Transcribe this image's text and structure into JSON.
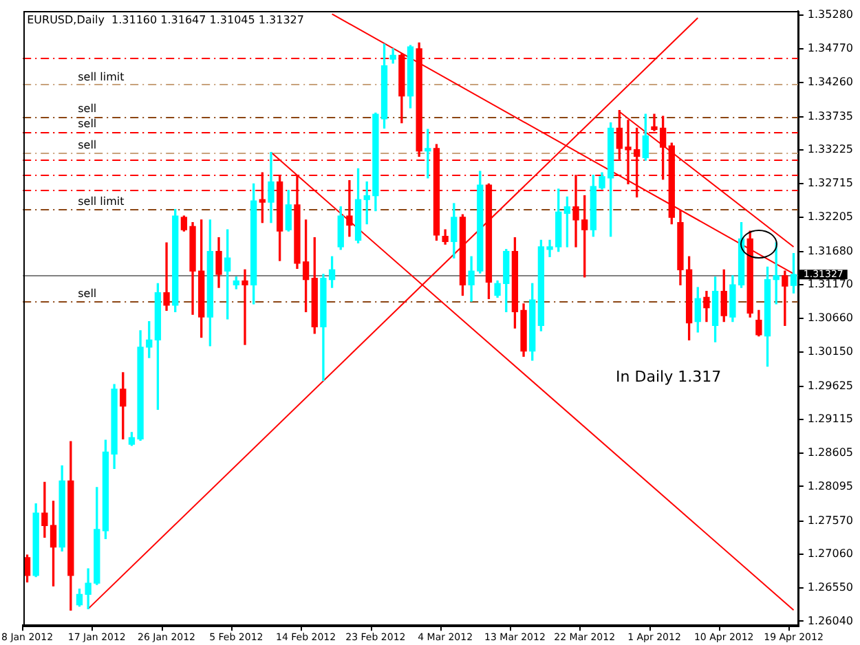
{
  "chart_data": {
    "type": "candlestick",
    "title": "EURUSD,Daily  1.31160 1.31647 1.31045 1.31327",
    "categories": [
      "8 Jan 2012",
      null,
      null,
      null,
      null,
      null,
      null,
      null,
      "17 Jan 2012",
      null,
      null,
      null,
      null,
      null,
      null,
      null,
      "26 Jan 2012",
      null,
      null,
      null,
      null,
      null,
      null,
      null,
      "5 Feb 2012",
      null,
      null,
      null,
      null,
      null,
      null,
      null,
      "14 Feb 2012",
      null,
      null,
      null,
      null,
      null,
      null,
      null,
      "23 Feb 2012",
      null,
      null,
      null,
      null,
      null,
      null,
      null,
      "4 Mar 2012",
      null,
      null,
      null,
      null,
      null,
      null,
      null,
      "13 Mar 2012",
      null,
      null,
      null,
      null,
      null,
      null,
      null,
      "22 Mar 2012",
      null,
      null,
      null,
      null,
      null,
      null,
      null,
      "1 Apr 2012",
      null,
      null,
      null,
      null,
      null,
      null,
      null,
      "10 Apr 2012",
      null,
      null,
      null,
      null,
      null,
      null,
      null,
      "19 Apr 2012"
    ],
    "ohlc": [
      [
        1.2701,
        1.2705,
        1.2664,
        1.2674
      ],
      [
        1.2674,
        1.2783,
        1.2672,
        1.2769
      ],
      [
        1.2769,
        1.2816,
        1.2732,
        1.275
      ],
      [
        1.275,
        1.2787,
        1.2658,
        1.2717
      ],
      [
        1.2717,
        1.2841,
        1.2711,
        1.2818
      ],
      [
        1.2818,
        1.2878,
        1.2621,
        1.2674
      ],
      [
        1.2629,
        1.2653,
        1.2627,
        1.2645
      ],
      [
        1.2645,
        1.2684,
        1.2623,
        1.2662
      ],
      [
        1.2662,
        1.2808,
        1.266,
        1.2744
      ],
      [
        1.2742,
        1.288,
        1.273,
        1.2862
      ],
      [
        1.2859,
        1.2965,
        1.2837,
        1.2958
      ],
      [
        1.2958,
        1.2983,
        1.2882,
        1.2932
      ],
      [
        1.2874,
        1.2892,
        1.2872,
        1.2884
      ],
      [
        1.2882,
        1.3047,
        1.288,
        1.3022
      ],
      [
        1.3022,
        1.3061,
        1.3006,
        1.3033
      ],
      [
        1.3033,
        1.3119,
        1.2927,
        1.3105
      ],
      [
        1.3105,
        1.3181,
        1.3078,
        1.3086
      ],
      [
        1.3086,
        1.3232,
        1.3076,
        1.3222
      ],
      [
        1.322,
        1.3222,
        1.3199,
        1.3201
      ],
      [
        1.3206,
        1.3212,
        1.3072,
        1.3138
      ],
      [
        1.3138,
        1.3216,
        1.3037,
        1.3068
      ],
      [
        1.3068,
        1.3216,
        1.3024,
        1.3168
      ],
      [
        1.3168,
        1.3189,
        1.3113,
        1.3133
      ],
      [
        1.3138,
        1.3201,
        1.3065,
        1.3158
      ],
      [
        1.3117,
        1.3129,
        1.3111,
        1.3123
      ],
      [
        1.3123,
        1.314,
        1.3026,
        1.3117
      ],
      [
        1.3117,
        1.3271,
        1.3088,
        1.3245
      ],
      [
        1.3247,
        1.3288,
        1.3212,
        1.3243
      ],
      [
        1.3243,
        1.3319,
        1.3212,
        1.3274
      ],
      [
        1.3274,
        1.3284,
        1.3154,
        1.3199
      ],
      [
        1.3201,
        1.3261,
        1.3199,
        1.3239
      ],
      [
        1.3239,
        1.3284,
        1.3142,
        1.315
      ],
      [
        1.3152,
        1.3216,
        1.3076,
        1.3125
      ],
      [
        1.3127,
        1.3189,
        1.3043,
        1.3053
      ],
      [
        1.3053,
        1.3133,
        1.2971,
        1.3127
      ],
      [
        1.3125,
        1.316,
        1.3113,
        1.314
      ],
      [
        1.3175,
        1.3236,
        1.3171,
        1.3222
      ],
      [
        1.3222,
        1.3276,
        1.3191,
        1.3208
      ],
      [
        1.3185,
        1.3294,
        1.3181,
        1.3247
      ],
      [
        1.3247,
        1.3274,
        1.321,
        1.3253
      ],
      [
        1.3253,
        1.3379,
        1.323,
        1.3377
      ],
      [
        1.337,
        1.3484,
        1.3356,
        1.3451
      ],
      [
        1.3461,
        1.3477,
        1.3455,
        1.3467
      ],
      [
        1.3467,
        1.3469,
        1.3364,
        1.3405
      ],
      [
        1.3405,
        1.3482,
        1.3387,
        1.348
      ],
      [
        1.3477,
        1.3486,
        1.3313,
        1.3321
      ],
      [
        1.3321,
        1.3354,
        1.328,
        1.3325
      ],
      [
        1.3325,
        1.3331,
        1.3185,
        1.3193
      ],
      [
        1.3191,
        1.3201,
        1.3179,
        1.3183
      ],
      [
        1.3183,
        1.3241,
        1.3158,
        1.322
      ],
      [
        1.322,
        1.3224,
        1.3101,
        1.3117
      ],
      [
        1.3117,
        1.316,
        1.3092,
        1.3138
      ],
      [
        1.3138,
        1.329,
        1.3135,
        1.3269
      ],
      [
        1.3269,
        1.3271,
        1.3096,
        1.3121
      ],
      [
        1.3101,
        1.3123,
        1.3098,
        1.3119
      ],
      [
        1.3119,
        1.3171,
        1.3076,
        1.3168
      ],
      [
        1.3168,
        1.3189,
        1.3051,
        1.3076
      ],
      [
        1.3078,
        1.3088,
        1.3008,
        1.3016
      ],
      [
        1.3016,
        1.3119,
        1.3002,
        1.3094
      ],
      [
        1.3055,
        1.3185,
        1.3047,
        1.3175
      ],
      [
        1.3171,
        1.3185,
        1.316,
        1.3175
      ],
      [
        1.3175,
        1.3263,
        1.3168,
        1.3228
      ],
      [
        1.3226,
        1.3251,
        1.3175,
        1.3236
      ],
      [
        1.3236,
        1.3284,
        1.3175,
        1.3216
      ],
      [
        1.3216,
        1.3253,
        1.3129,
        1.3201
      ],
      [
        1.3201,
        1.3284,
        1.3191,
        1.3267
      ],
      [
        1.3265,
        1.3288,
        1.3263,
        1.3282
      ],
      [
        1.328,
        1.3364,
        1.3191,
        1.3356
      ],
      [
        1.3356,
        1.3383,
        1.3309,
        1.3325
      ],
      [
        1.3327,
        1.3368,
        1.3271,
        1.3323
      ],
      [
        1.3323,
        1.3356,
        1.3251,
        1.3313
      ],
      [
        1.3311,
        1.3377,
        1.3307,
        1.3344
      ],
      [
        1.3358,
        1.3377,
        1.3352,
        1.3354
      ],
      [
        1.3356,
        1.3374,
        1.3278,
        1.3327
      ],
      [
        1.3329,
        1.3333,
        1.321,
        1.322
      ],
      [
        1.3212,
        1.323,
        1.3117,
        1.314
      ],
      [
        1.314,
        1.316,
        1.3033,
        1.3059
      ],
      [
        1.3061,
        1.3113,
        1.3045,
        1.3096
      ],
      [
        1.3098,
        1.3107,
        1.3061,
        1.3082
      ],
      [
        1.3055,
        1.3129,
        1.303,
        1.3107
      ],
      [
        1.3107,
        1.314,
        1.3061,
        1.307
      ],
      [
        1.3068,
        1.3131,
        1.3061,
        1.3117
      ],
      [
        1.3117,
        1.3212,
        1.3113,
        1.3187
      ],
      [
        1.3187,
        1.3199,
        1.3068,
        1.3074
      ],
      [
        1.3063,
        1.3078,
        1.3039,
        1.3041
      ],
      [
        1.3039,
        1.3144,
        1.2993,
        1.3125
      ],
      [
        1.3125,
        1.3181,
        1.3088,
        1.3131
      ],
      [
        1.3131,
        1.3138,
        1.3055,
        1.3115
      ],
      [
        1.3116,
        1.31647,
        1.31045,
        1.31327
      ]
    ],
    "colors": [
      "#ff0000",
      "#00ffff",
      "#ff0000",
      "#ff0000",
      "#00ffff",
      "#ff0000",
      "#00ffff",
      "#00ffff",
      "#00ffff",
      "#00ffff",
      "#00ffff",
      "#ff0000",
      "#00ffff",
      "#00ffff",
      "#00ffff",
      "#00ffff",
      "#ff0000",
      "#00ffff",
      "#ff0000",
      "#ff0000",
      "#ff0000",
      "#00ffff",
      "#ff0000",
      "#00ffff",
      "#00ffff",
      "#ff0000",
      "#00ffff",
      "#ff0000",
      "#00ffff",
      "#ff0000",
      "#00ffff",
      "#ff0000",
      "#ff0000",
      "#ff0000",
      "#00ffff",
      "#00ffff",
      "#00ffff",
      "#ff0000",
      "#00ffff",
      "#00ffff",
      "#00ffff",
      "#00ffff",
      "#00ffff",
      "#ff0000",
      "#00ffff",
      "#ff0000",
      "#00ffff",
      "#ff0000",
      "#ff0000",
      "#00ffff",
      "#ff0000",
      "#00ffff",
      "#00ffff",
      "#ff0000",
      "#00ffff",
      "#00ffff",
      "#ff0000",
      "#ff0000",
      "#00ffff",
      "#00ffff",
      "#00ffff",
      "#00ffff",
      "#00ffff",
      "#ff0000",
      "#ff0000",
      "#00ffff",
      "#00ffff",
      "#00ffff",
      "#ff0000",
      "#ff0000",
      "#ff0000",
      "#00ffff",
      "#ff0000",
      "#ff0000",
      "#ff0000",
      "#ff0000",
      "#ff0000",
      "#00ffff",
      "#ff0000",
      "#00ffff",
      "#ff0000",
      "#00ffff",
      "#00ffff",
      "#ff0000",
      "#ff0000",
      "#00ffff",
      "#00ffff",
      "#ff0000",
      "#00ffff"
    ],
    "series": [
      {
        "type": "line",
        "color": "#ff0000",
        "values": [
          null,
          null,
          null,
          null,
          null,
          null,
          null,
          1.2623,
          null,
          null,
          null,
          null,
          null,
          null,
          null,
          null,
          null,
          null,
          null,
          null,
          null,
          null,
          null,
          null,
          null,
          null,
          null,
          null,
          null,
          null,
          null,
          null,
          null,
          null,
          null,
          null,
          null,
          null,
          null,
          null,
          null,
          null,
          null,
          null,
          null,
          null,
          null,
          null,
          null,
          null,
          null,
          null,
          null,
          null,
          null,
          null,
          null,
          null,
          null,
          null,
          null,
          null,
          null,
          null,
          null,
          null,
          null,
          null,
          null,
          null,
          null,
          null,
          null,
          null,
          null,
          null,
          null,
          1.3524,
          null,
          null,
          null,
          null,
          null,
          null,
          null,
          null,
          null,
          null,
          null
        ]
      },
      {
        "type": "line",
        "color": "#ff0000",
        "values": [
          null,
          null,
          null,
          null,
          null,
          null,
          null,
          null,
          null,
          null,
          null,
          null,
          null,
          null,
          null,
          null,
          null,
          null,
          null,
          null,
          null,
          null,
          null,
          null,
          null,
          null,
          null,
          null,
          1.3319,
          null,
          null,
          null,
          null,
          null,
          null,
          null,
          null,
          null,
          null,
          null,
          null,
          null,
          null,
          null,
          null,
          null,
          null,
          null,
          null,
          null,
          null,
          null,
          null,
          null,
          null,
          null,
          null,
          null,
          null,
          null,
          null,
          null,
          null,
          null,
          null,
          null,
          null,
          null,
          null,
          null,
          null,
          null,
          null,
          null,
          null,
          null,
          null,
          null,
          null,
          null,
          null,
          null,
          null,
          null,
          null,
          null,
          null,
          null,
          1.2621
        ]
      },
      {
        "type": "line",
        "color": "#ff0000",
        "values": [
          null,
          null,
          null,
          null,
          null,
          null,
          null,
          null,
          null,
          null,
          null,
          null,
          null,
          null,
          null,
          null,
          null,
          null,
          null,
          null,
          null,
          null,
          null,
          null,
          null,
          null,
          null,
          null,
          null,
          null,
          null,
          null,
          null,
          null,
          null,
          1.353,
          null,
          null,
          null,
          null,
          null,
          null,
          null,
          null,
          null,
          null,
          null,
          null,
          null,
          null,
          null,
          null,
          null,
          null,
          null,
          null,
          null,
          null,
          null,
          null,
          null,
          null,
          null,
          null,
          null,
          null,
          null,
          null,
          null,
          null,
          null,
          null,
          null,
          null,
          null,
          null,
          null,
          null,
          null,
          null,
          null,
          null,
          null,
          null,
          null,
          null,
          null,
          null,
          1.3134
        ]
      },
      {
        "type": "line",
        "color": "#ff0000",
        "values": [
          null,
          null,
          null,
          null,
          null,
          null,
          null,
          null,
          null,
          null,
          null,
          null,
          null,
          null,
          null,
          null,
          null,
          null,
          null,
          null,
          null,
          null,
          null,
          null,
          null,
          null,
          null,
          null,
          null,
          null,
          null,
          null,
          null,
          null,
          null,
          null,
          null,
          null,
          null,
          null,
          null,
          null,
          null,
          null,
          null,
          null,
          null,
          null,
          null,
          null,
          null,
          null,
          null,
          null,
          null,
          null,
          null,
          null,
          null,
          null,
          null,
          null,
          null,
          null,
          null,
          null,
          null,
          null,
          1.3381,
          null,
          null,
          null,
          null,
          null,
          null,
          null,
          null,
          null,
          null,
          null,
          null,
          null,
          null,
          null,
          null,
          null,
          null,
          null,
          1.3175
        ]
      }
    ],
    "ylim": [
      1.2598,
      1.3535
    ],
    "yticks": [
      {
        "value": 1.3528,
        "label": "1.35280"
      },
      {
        "value": 1.3477,
        "label": "1.34770"
      },
      {
        "value": 1.3426,
        "label": "1.34260"
      },
      1.33735,
      1.33225,
      1.32715,
      1.32205,
      {
        "value": 1.3168,
        "label": "1.31680"
      },
      {
        "value": 1.3117,
        "label": "1.31170"
      },
      {
        "value": 1.3066,
        "label": "1.30660"
      },
      {
        "value": 1.3015,
        "label": "1.30150"
      },
      1.29625,
      1.29115,
      1.28605,
      1.28095,
      {
        "value": 1.2757,
        "label": "1.27570"
      },
      {
        "value": 1.2706,
        "label": "1.27060"
      },
      {
        "value": 1.2655,
        "label": "1.26550"
      },
      {
        "value": 1.2604,
        "label": "1.26040"
      }
    ],
    "ref_lines": [
      {
        "axis": "y",
        "value": 1.3463,
        "color": "#ff0000",
        "line_style": "dashed"
      },
      {
        "axis": "y",
        "value": 1.3423,
        "label": "sell limit",
        "color": "#c8a27c",
        "line_style": "dashed"
      },
      {
        "axis": "y",
        "value": 1.3374,
        "label": "sell",
        "color": "#8b4513",
        "line_style": "dashed"
      },
      {
        "axis": "y",
        "value": 1.3351,
        "label": "sell",
        "color": "#8b4513",
        "line_style": "dashed"
      },
      {
        "axis": "y",
        "value": 1.3349,
        "color": "#ff0000",
        "line_style": "dashed"
      },
      {
        "axis": "y",
        "value": 1.3319,
        "label": "sell",
        "color": "#c8a27c",
        "line_style": "dashed"
      },
      {
        "axis": "y",
        "value": 1.3309,
        "color": "#ff0000",
        "line_style": "dashed"
      },
      {
        "axis": "y",
        "value": 1.3284,
        "color": "#ff0000",
        "line_style": "dashed"
      },
      {
        "axis": "y",
        "value": 1.3262,
        "color": "#ff0000",
        "line_style": "dashed"
      },
      {
        "axis": "y",
        "value": 1.3233,
        "label": "sell limit",
        "color": "#8b4513",
        "line_style": "dashed"
      },
      {
        "axis": "y",
        "value": 1.31327,
        "label": "1.31327",
        "color": "#808080",
        "line_style": "solid"
      },
      {
        "axis": "y",
        "value": 1.3092,
        "label": "sell",
        "color": "#8b4513",
        "line_style": "dashed"
      }
    ],
    "annotations": [
      "In Daily 1.317"
    ]
  }
}
